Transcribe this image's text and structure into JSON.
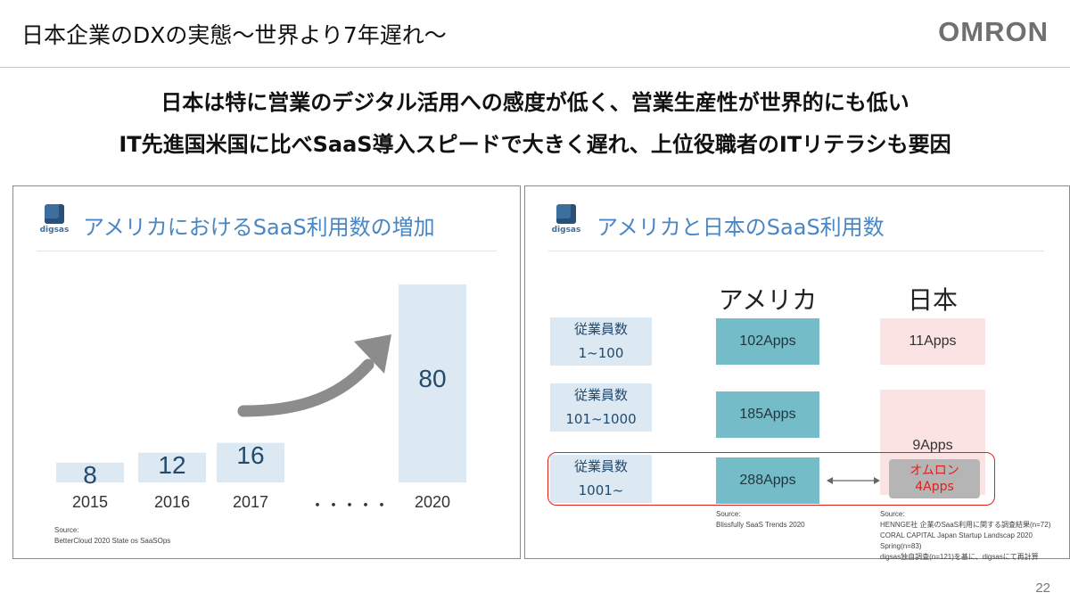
{
  "slide": {
    "title": "日本企業のDXの実態〜世界より7年遅れ〜",
    "logo_text": "OMRON",
    "subtitle_line1": "日本は特に営業のデジタル活用への感度が低く、営業生産性が世界的にも低い",
    "subtitle_line2": "IT先進国米国に比べSaaS導入スピードで大きく遅れ、上位役職者のITリテラシも要因",
    "page_number": "22"
  },
  "left_panel": {
    "brand": "digsas",
    "title": "アメリカにおけるSaaS利用数の増加",
    "ellipsis": "・・・・・",
    "source_label": "Source:",
    "source_text": "BetterCloud 2020 State os SaaSOps"
  },
  "chart_data": {
    "type": "bar",
    "categories": [
      "2015",
      "2016",
      "2017",
      "2020"
    ],
    "values": [
      8,
      12,
      16,
      80
    ],
    "title": "アメリカにおけるSaaS利用数の増加",
    "xlabel": "",
    "ylabel": "",
    "ylim": [
      0,
      85
    ],
    "bar_color": "#dce8f2",
    "arrow_color": "#8c8c8c"
  },
  "right_panel": {
    "brand": "digsas",
    "title": "アメリカと日本のSaaS利用数",
    "col_us": "アメリカ",
    "col_jp": "日本",
    "rows": [
      {
        "label_line1": "従業員数",
        "label_line2": "1~100",
        "us": "102Apps",
        "jp": "11Apps"
      },
      {
        "label_line1": "従業員数",
        "label_line2": "101~1000",
        "us": "185Apps",
        "jp": ""
      },
      {
        "label_line1": "従業員数",
        "label_line2": "1001~",
        "us": "288Apps",
        "jp": "9Apps"
      }
    ],
    "omron_line1": "オムロン",
    "omron_line2": "4Apps",
    "source_us_label": "Source:",
    "source_us_text": "Blissfully SaaS Trends 2020",
    "source_jp_label": "Source:",
    "source_jp_lines": [
      "HENNGE社 企業のSaaS利用に関する調査結果(n=72)",
      "CORAL CAPITAL Japan Startup Landscap 2020 Spring(n=83)",
      "digsas独自調査(n=121)を基に、digsasにて再計算"
    ],
    "highlight_color": "#e0201c",
    "us_color": "#74bcc8",
    "jp_color": "#fbe2e3"
  }
}
